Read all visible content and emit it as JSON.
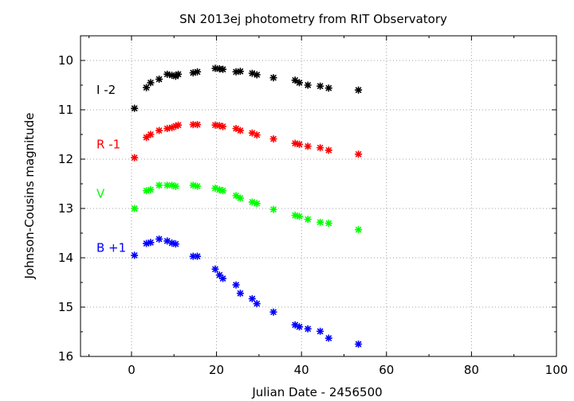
{
  "chart_data": {
    "type": "scatter",
    "title": "SN 2013ej photometry from RIT Observatory",
    "xlabel": "Julian Date - 2456500",
    "ylabel": "Johnson-Cousins magnitude",
    "xlim": [
      -12,
      100
    ],
    "ylim": [
      16,
      9.5
    ],
    "y_inverted": true,
    "grid": true,
    "grid_style": "dotted",
    "marker": "asterisk",
    "legend": "series labels placed beside the data at left",
    "x_ticks": [
      "0",
      "20",
      "40",
      "60",
      "80",
      "100"
    ],
    "x_tick_values": [
      0,
      20,
      40,
      60,
      80,
      100
    ],
    "y_ticks": [
      "10",
      "11",
      "12",
      "13",
      "14",
      "15",
      "16"
    ],
    "y_tick_values": [
      10,
      11,
      12,
      13,
      14,
      15,
      16
    ],
    "series": [
      {
        "name": "I -2",
        "color": "#000000",
        "points": [
          [
            0.7,
            10.97
          ],
          [
            3.5,
            10.55
          ],
          [
            4.5,
            10.45
          ],
          [
            6.5,
            10.38
          ],
          [
            8.4,
            10.28
          ],
          [
            9.5,
            10.3
          ],
          [
            10.4,
            10.32
          ],
          [
            11.0,
            10.28
          ],
          [
            14.5,
            10.25
          ],
          [
            15.5,
            10.23
          ],
          [
            19.7,
            10.16
          ],
          [
            20.7,
            10.17
          ],
          [
            21.5,
            10.18
          ],
          [
            24.6,
            10.23
          ],
          [
            25.6,
            10.22
          ],
          [
            28.4,
            10.26
          ],
          [
            29.5,
            10.29
          ],
          [
            33.4,
            10.35
          ],
          [
            38.5,
            10.4
          ],
          [
            39.5,
            10.45
          ],
          [
            41.5,
            10.5
          ],
          [
            44.4,
            10.52
          ],
          [
            46.4,
            10.56
          ],
          [
            53.4,
            10.6
          ]
        ]
      },
      {
        "name": "R -1",
        "color": "#ff0000",
        "points": [
          [
            0.7,
            11.97
          ],
          [
            3.5,
            11.56
          ],
          [
            4.5,
            11.5
          ],
          [
            6.5,
            11.42
          ],
          [
            8.4,
            11.38
          ],
          [
            9.5,
            11.36
          ],
          [
            10.4,
            11.33
          ],
          [
            11.0,
            11.31
          ],
          [
            14.5,
            11.3
          ],
          [
            15.5,
            11.3
          ],
          [
            19.7,
            11.31
          ],
          [
            20.7,
            11.32
          ],
          [
            21.5,
            11.34
          ],
          [
            24.6,
            11.38
          ],
          [
            25.6,
            11.42
          ],
          [
            28.4,
            11.47
          ],
          [
            29.5,
            11.51
          ],
          [
            33.4,
            11.59
          ],
          [
            38.5,
            11.68
          ],
          [
            39.5,
            11.7
          ],
          [
            41.5,
            11.74
          ],
          [
            44.4,
            11.77
          ],
          [
            46.4,
            11.82
          ],
          [
            53.4,
            11.9
          ]
        ]
      },
      {
        "name": "V",
        "color": "#00ff00",
        "points": [
          [
            0.7,
            13.0
          ],
          [
            3.5,
            12.64
          ],
          [
            4.5,
            12.62
          ],
          [
            6.5,
            12.53
          ],
          [
            8.4,
            12.53
          ],
          [
            9.5,
            12.53
          ],
          [
            10.4,
            12.55
          ],
          [
            14.5,
            12.53
          ],
          [
            15.5,
            12.55
          ],
          [
            19.7,
            12.59
          ],
          [
            20.7,
            12.62
          ],
          [
            21.5,
            12.64
          ],
          [
            24.6,
            12.74
          ],
          [
            25.6,
            12.79
          ],
          [
            28.4,
            12.87
          ],
          [
            29.5,
            12.9
          ],
          [
            33.4,
            13.02
          ],
          [
            38.5,
            13.14
          ],
          [
            39.5,
            13.16
          ],
          [
            41.5,
            13.22
          ],
          [
            44.4,
            13.28
          ],
          [
            46.4,
            13.3
          ],
          [
            53.4,
            13.43
          ]
        ]
      },
      {
        "name": "B +1",
        "color": "#0000ff",
        "points": [
          [
            0.7,
            13.95
          ],
          [
            3.5,
            13.71
          ],
          [
            4.5,
            13.69
          ],
          [
            6.5,
            13.62
          ],
          [
            8.4,
            13.66
          ],
          [
            9.5,
            13.7
          ],
          [
            10.4,
            13.72
          ],
          [
            14.5,
            13.97
          ],
          [
            15.5,
            13.97
          ],
          [
            19.7,
            14.23
          ],
          [
            20.7,
            14.35
          ],
          [
            21.5,
            14.42
          ],
          [
            24.6,
            14.55
          ],
          [
            25.6,
            14.72
          ],
          [
            28.4,
            14.83
          ],
          [
            29.5,
            14.93
          ],
          [
            33.4,
            15.1
          ],
          [
            38.5,
            15.36
          ],
          [
            39.5,
            15.4
          ],
          [
            41.5,
            15.44
          ],
          [
            44.4,
            15.49
          ],
          [
            46.4,
            15.63
          ],
          [
            53.4,
            15.75
          ]
        ]
      }
    ]
  }
}
